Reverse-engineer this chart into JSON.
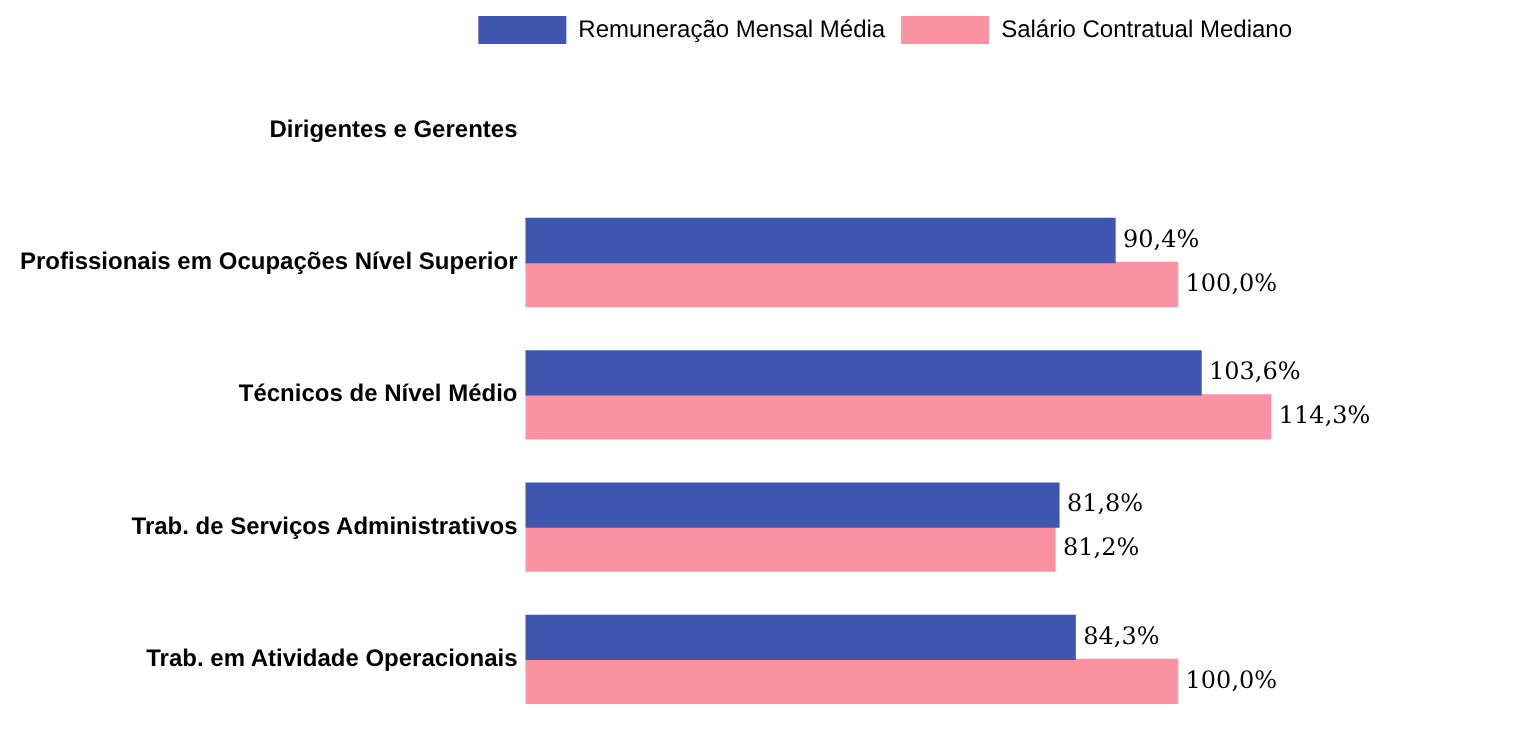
{
  "chart_data": {
    "type": "bar",
    "orientation": "horizontal",
    "categories": [
      "Dirigentes e Gerentes",
      "Profissionais em Ocupações Nível Superior",
      "Técnicos de Nível Médio",
      "Trab. de Serviços Administrativos",
      "Trab. em Atividade Operacionais"
    ],
    "series": [
      {
        "name": "Remuneração Mensal Média",
        "color": "#3f56b0",
        "values": [
          null,
          90.4,
          103.6,
          81.8,
          84.3
        ],
        "value_labels": [
          null,
          "90,4%",
          "103,6%",
          "81,8%",
          "84,3%"
        ]
      },
      {
        "name": "Salário Contratual Mediano",
        "color": "#f993a2",
        "values": [
          null,
          100.0,
          114.3,
          81.2,
          100.0
        ],
        "value_labels": [
          null,
          "100,0%",
          "114,3%",
          "81,2%",
          "100,0%"
        ]
      }
    ],
    "tick_labels": "y",
    "legend": "top right"
  }
}
